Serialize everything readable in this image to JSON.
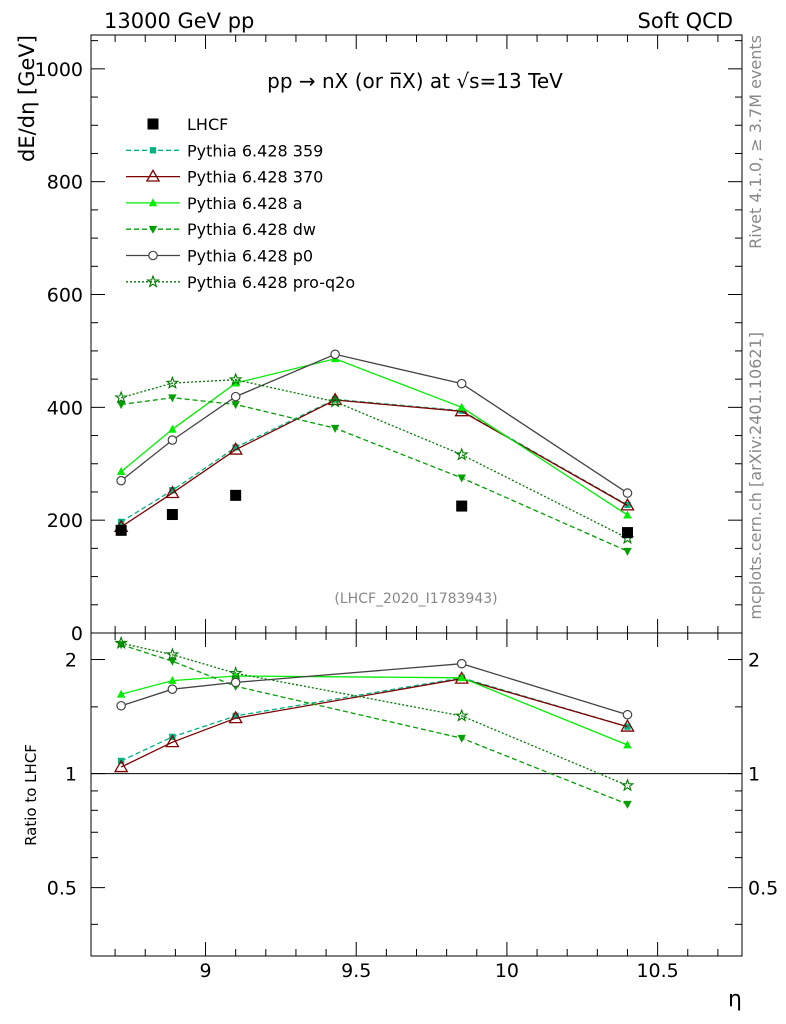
{
  "header": {
    "left": "13000 GeV pp",
    "right": "Soft QCD"
  },
  "side_text": {
    "rivet": "Rivet 4.1.0, ≥ 3.7M events",
    "mcplots": "mcplots.cern.ch [arXiv:2401.10621]"
  },
  "chart_data": {
    "type": "line",
    "title": "pp → nX (or n̅X) at √s=13 TeV",
    "xlabel": "η",
    "ylabel": "dE/dη [GeV]",
    "ratio_ylabel": "Ratio to LHCF",
    "watermark": "(LHCF_2020_I1783943)",
    "xlim": [
      8.62,
      10.78
    ],
    "ylim": [
      0,
      1060
    ],
    "ratio_ylim": [
      0.33,
      2.35
    ],
    "x_ticks": [
      9,
      9.5,
      10,
      10.5
    ],
    "x_tick_labels": [
      "9",
      "9.5",
      "10",
      "10.5"
    ],
    "y_ticks": [
      0,
      200,
      400,
      600,
      800,
      1000
    ],
    "y_tick_labels": [
      "0",
      "200",
      "400",
      "600",
      "800",
      "1000"
    ],
    "ratio_y_ticks": [
      0.5,
      1,
      2
    ],
    "ratio_y_tick_labels": [
      "0.5",
      "1",
      "2"
    ],
    "legend_position": "top-left",
    "data": {
      "name": "LHCF",
      "x": [
        8.72,
        8.89,
        9.1,
        9.85,
        10.4
      ],
      "y": [
        182,
        210,
        244,
        225,
        178
      ]
    },
    "series": [
      {
        "name": "Pythia 6.428 359",
        "color": "#00b383",
        "dash": "5,3",
        "marker": "square-filled",
        "x": [
          8.72,
          8.89,
          9.1,
          9.43,
          9.85,
          10.4
        ],
        "y": [
          197,
          253,
          329,
          414,
          394,
          227
        ],
        "ratio": [
          1.08,
          1.25,
          1.42,
          null,
          1.79,
          1.33
        ]
      },
      {
        "name": "Pythia 6.428 370",
        "color": "#7f0000",
        "dash": "",
        "marker": "triangle-open",
        "x": [
          8.72,
          8.89,
          9.1,
          9.43,
          9.85,
          10.4
        ],
        "y": [
          188,
          248,
          325,
          413,
          393,
          226
        ],
        "ratio": [
          1.04,
          1.21,
          1.4,
          null,
          1.78,
          1.33
        ]
      },
      {
        "name": "Pythia 6.428 a",
        "color": "#00ee00",
        "dash": "",
        "marker": "triangle-filled",
        "x": [
          8.72,
          8.89,
          9.1,
          9.43,
          9.85,
          10.4
        ],
        "y": [
          286,
          361,
          443,
          486,
          400,
          209
        ],
        "ratio": [
          1.62,
          1.76,
          1.81,
          null,
          1.79,
          1.19
        ]
      },
      {
        "name": "Pythia 6.428 dw",
        "color": "#00a000",
        "dash": "5,3",
        "marker": "triangle-down-filled",
        "x": [
          8.72,
          8.89,
          9.1,
          9.43,
          9.85,
          10.4
        ],
        "y": [
          405,
          417,
          405,
          363,
          275,
          145
        ],
        "ratio": [
          2.19,
          1.98,
          1.7,
          null,
          1.24,
          0.83
        ]
      },
      {
        "name": "Pythia 6.428 p0",
        "color": "#444444",
        "dash": "",
        "marker": "circle-open",
        "x": [
          8.72,
          8.89,
          9.1,
          9.43,
          9.85,
          10.4
        ],
        "y": [
          270,
          342,
          419,
          494,
          442,
          248
        ],
        "ratio": [
          1.51,
          1.67,
          1.74,
          null,
          1.95,
          1.43
        ]
      },
      {
        "name": "Pythia 6.428 pro-q2o",
        "color": "#007a00",
        "dash": "2,2",
        "marker": "star-open",
        "x": [
          8.72,
          8.89,
          9.1,
          9.43,
          9.85,
          10.4
        ],
        "y": [
          417,
          443,
          449,
          410,
          316,
          168
        ],
        "ratio": [
          2.21,
          2.06,
          1.84,
          null,
          1.42,
          0.93
        ]
      }
    ]
  }
}
